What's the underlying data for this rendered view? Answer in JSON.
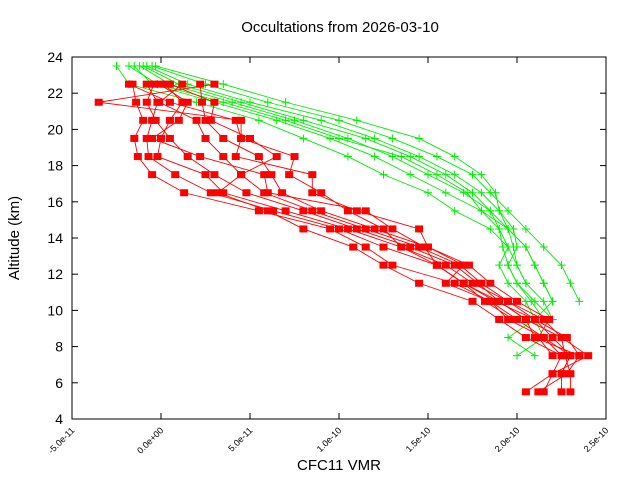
{
  "chart_data": {
    "type": "line",
    "title": "Occultations from 2026-03-10",
    "xlabel": "CFC11 VMR",
    "ylabel": "Altitude (km)",
    "xlim": [
      -5e-11,
      2.5e-10
    ],
    "ylim": [
      4,
      24
    ],
    "xticks": [
      "-5.0e-11",
      "0.0e+00",
      "5.0e-11",
      "1.0e-10",
      "1.5e-10",
      "2.0e-10",
      "2.5e-10"
    ],
    "xtick_values": [
      -5e-11,
      0,
      5e-11,
      1e-10,
      1.5e-10,
      2e-10,
      2.5e-10
    ],
    "yticks": [
      "4",
      "6",
      "8",
      "10",
      "12",
      "14",
      "16",
      "18",
      "20",
      "22",
      "24"
    ],
    "ytick_values": [
      4,
      6,
      8,
      10,
      12,
      14,
      16,
      18,
      20,
      22,
      24
    ],
    "grid": false,
    "colors": {
      "red_profiles": "#ff0000",
      "green_profiles": "#00ee00"
    },
    "red_altitudes": [
      22.5,
      21.5,
      20.5,
      19.5,
      18.5,
      17.5,
      16.5,
      15.5,
      14.5,
      13.5,
      12.5,
      11.5,
      10.5,
      9.5,
      8.5,
      7.5,
      6.5,
      5.5
    ],
    "red_series": [
      [
        -1.6e-11,
        -1.4e-11,
        -1e-11,
        -1.5e-11,
        -1.3e-11,
        -5e-12,
        1.3e-11,
        5.5e-11,
        9.5e-11,
        1.15e-10,
        1.3e-10,
        1.65e-10,
        1.85e-10,
        1.95e-10,
        2.15e-10,
        2.25e-10,
        2.2e-10,
        2.05e-10
      ],
      [
        -8e-12,
        -2e-12,
        -5e-12,
        -8e-12,
        -7e-12,
        8e-12,
        2.8e-11,
        6.3e-11,
        1e-10,
        1.25e-10,
        1.55e-10,
        1.7e-10,
        1.9e-10,
        2.05e-10,
        2.1e-10,
        2.35e-10,
        2.28e-10,
        2.12e-10
      ],
      [
        2e-12,
        1.2e-11,
        5e-12,
        0.0,
        -2e-12,
        2.5e-11,
        3.5e-11,
        7e-11,
        1.05e-10,
        1.35e-10,
        1.6e-10,
        1.75e-10,
        1.95e-10,
        2.1e-10,
        2.2e-10,
        2.3e-10,
        2.25e-10,
        2.25e-10
      ],
      [
        -4e-12,
        -8e-12,
        -3e-12,
        5e-12,
        1.5e-11,
        3e-11,
        4.8e-11,
        8e-11,
        1.1e-10,
        1.4e-10,
        1.65e-10,
        1.78e-10,
        1.9e-10,
        2.05e-10,
        2.25e-10,
        2.27e-10,
        2.3e-10,
        2.3e-10
      ],
      [
        1.2e-11,
        -1e-12,
        2e-11,
        2.5e-11,
        3.5e-11,
        4.5e-11,
        5.8e-11,
        8.5e-11,
        1.15e-10,
        1.45e-10,
        1.68e-10,
        1.8e-10,
        1.95e-10,
        2.15e-10,
        2.25e-10,
        2.4e-10,
        2.2e-10,
        2.15e-10
      ],
      [
        2.2e-11,
        2.3e-11,
        2.5e-11,
        3.5e-11,
        5.5e-11,
        6.2e-11,
        6.8e-11,
        9e-11,
        1.2e-10,
        1.5e-10,
        1.7e-10,
        1.6e-10,
        1.85e-10,
        2e-10,
        2.15e-10,
        2.3e-10,
        2.25e-10
      ],
      [
        3e-11,
        -3.5e-11,
        4.5e-11,
        4.5e-11,
        7.5e-11,
        7.2e-11,
        9e-11,
        1.05e-10,
        1.25e-10,
        1.35e-10,
        1.55e-10,
        1.7e-10,
        1.88e-10,
        2.1e-10,
        2.28e-10,
        2.35e-10
      ],
      [
        -1.8e-11,
        5e-12,
        4.2e-11,
        4.5e-11,
        4.2e-11,
        8.5e-11,
        8.5e-11,
        1.1e-10,
        1.45e-10,
        1.5e-10,
        1.73e-10,
        1.85e-10,
        2e-10,
        2.18e-10,
        2.12e-10,
        2.2e-10
      ],
      [
        5e-12,
        3e-11,
        2.8e-11,
        5e-11,
        6.5e-11,
        4.5e-11,
        3.2e-11,
        6e-11,
        8e-11,
        1.08e-10,
        1.25e-10,
        1.45e-10,
        1.75e-10,
        1.9e-10,
        2.05e-10,
        2.25e-10
      ],
      [
        -1e-12,
        1.5e-11,
        1e-11,
        -5e-12,
        2.2e-11,
        5.8e-11,
        6e-11,
        1.15e-10,
        1.3e-10,
        1.48e-10,
        1.55e-10,
        1.7e-10,
        1.82e-10,
        1.98e-10
      ]
    ],
    "green_altitudes": [
      23.5,
      22.5,
      21.5,
      20.5,
      19.5,
      18.5,
      17.5,
      16.5,
      15.5,
      14.5,
      13.5,
      12.5,
      11.5,
      10.5,
      9.5,
      8.5,
      7.5
    ],
    "green_series": [
      [
        -2.5e-11,
        -1.8e-11,
        2e-11,
        5.5e-11,
        8e-11,
        1.05e-10,
        1.25e-10,
        1.5e-10,
        1.65e-10,
        1.85e-10,
        1.95e-10,
        1.9e-10,
        1.95e-10,
        2.05e-10,
        2.1e-10,
        2.15e-10,
        2e-10
      ],
      [
        -1.5e-11,
        -5e-12,
        3e-11,
        6.5e-11,
        9.5e-11,
        1.2e-10,
        1.4e-10,
        1.6e-10,
        1.8e-10,
        1.9e-10,
        1.95e-10,
        2e-10,
        2.05e-10,
        2.15e-10,
        2.2e-10
      ],
      [
        -1.2e-11,
        5e-12,
        4e-11,
        7.5e-11,
        1.05e-10,
        1.3e-10,
        1.5e-10,
        1.7e-10,
        1.85e-10,
        1.95e-10,
        2.05e-10,
        2.1e-10,
        2.15e-10,
        2.2e-10,
        2.1e-10,
        1.95e-10,
        2.1e-10
      ],
      [
        -8e-12,
        1.5e-11,
        5e-11,
        9e-11,
        1.2e-10,
        1.45e-10,
        1.65e-10,
        1.8e-10,
        1.9e-10,
        1.98e-10,
        2e-10,
        1.95e-10,
        2e-10,
        2.1e-10,
        2.2e-10
      ],
      [
        -5e-12,
        2.5e-11,
        6e-11,
        1e-10,
        1.3e-10,
        1.55e-10,
        1.75e-10,
        1.85e-10,
        1.95e-10,
        2.05e-10,
        2.15e-10,
        2.25e-10,
        2.3e-10,
        2.35e-10
      ],
      [
        -3e-12,
        3.5e-11,
        7e-11,
        1.1e-10,
        1.45e-10,
        1.65e-10,
        1.8e-10,
        1.88e-10,
        1.9e-10,
        1.95e-10,
        1.98e-10,
        2e-10,
        2.05e-10
      ],
      [
        -1e-11,
        1e-11,
        4.5e-11,
        8e-11,
        1.15e-10,
        1.4e-10,
        1.6e-10,
        1.75e-10,
        1.85e-10,
        1.9e-10,
        1.92e-10,
        1.95e-10,
        2e-10,
        2.08e-10,
        2.15e-10
      ],
      [
        -1.8e-11,
        -2e-12,
        3.5e-11,
        7e-11,
        1e-10,
        1.35e-10,
        1.55e-10,
        1.72e-10,
        1.8e-10,
        1.95e-10,
        2.05e-10,
        2.1e-10,
        2.15e-10,
        2.2e-10
      ]
    ]
  }
}
